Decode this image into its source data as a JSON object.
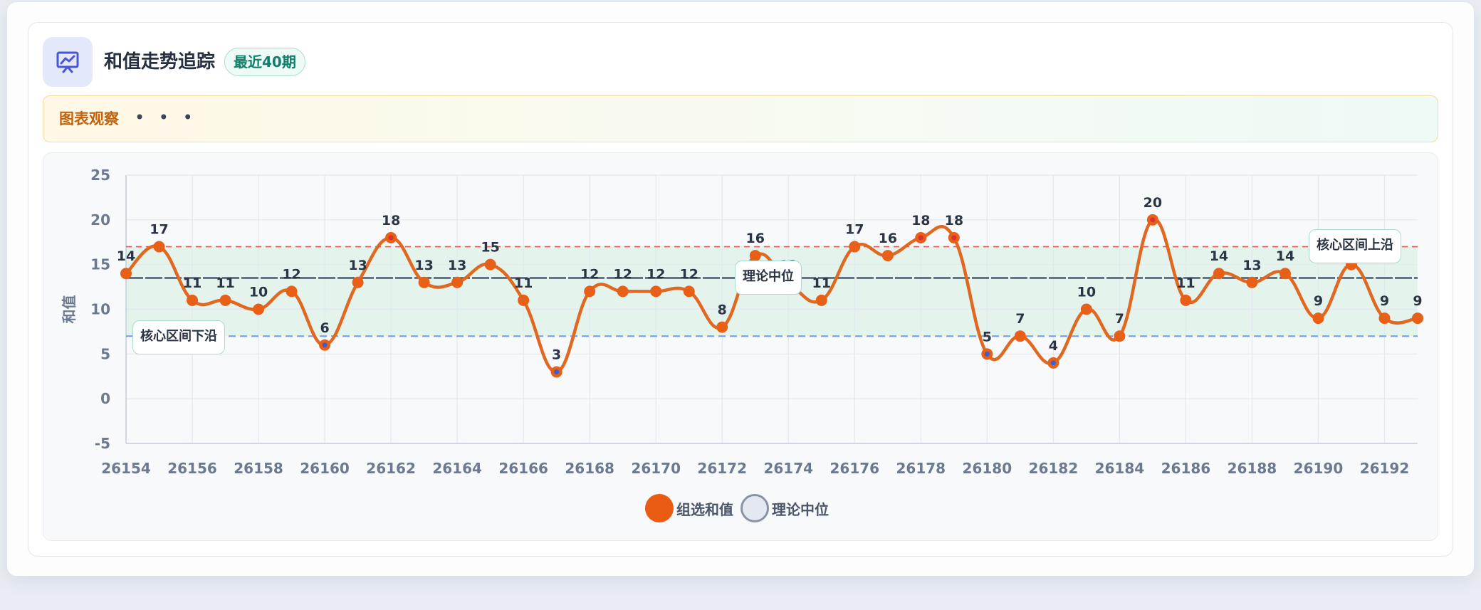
{
  "header": {
    "title": "和值走势追踪",
    "badge": "最近40期"
  },
  "observation": {
    "label": "图表观察",
    "ellipsis": "• • •"
  },
  "legend": {
    "series_label": "组选和值",
    "median_label": "理论中位"
  },
  "annotations": {
    "lower": "核心区间下沿",
    "median": "理论中位",
    "upper": "核心区间上沿"
  },
  "colors": {
    "line": "#e06820",
    "marker": "#e85f17",
    "median_line": "#4a5a75",
    "upper_line": "#e05a5a",
    "lower_line": "#6a9cf0",
    "band": "#dff2ea"
  },
  "chart_data": {
    "type": "line",
    "title": "",
    "xlabel": "",
    "ylabel": "和值",
    "x": [
      26154,
      26155,
      26156,
      26157,
      26158,
      26159,
      26160,
      26161,
      26162,
      26163,
      26164,
      26165,
      26166,
      26167,
      26168,
      26169,
      26170,
      26171,
      26172,
      26173,
      26174,
      26175,
      26176,
      26177,
      26178,
      26179,
      26180,
      26181,
      26182,
      26183,
      26184,
      26185,
      26186,
      26187,
      26188,
      26189,
      26190,
      26191,
      26192,
      26193
    ],
    "x_ticks": [
      26154,
      26156,
      26158,
      26160,
      26162,
      26164,
      26166,
      26168,
      26170,
      26172,
      26174,
      26176,
      26178,
      26180,
      26182,
      26184,
      26186,
      26188,
      26190,
      26192
    ],
    "y_ticks": [
      25,
      20,
      15,
      10,
      5,
      0,
      -5
    ],
    "ylim": [
      -5,
      25
    ],
    "series": [
      {
        "name": "组选和值",
        "values": [
          14,
          17,
          11,
          11,
          10,
          12,
          6,
          13,
          18,
          13,
          13,
          15,
          11,
          3,
          12,
          12,
          12,
          12,
          8,
          16,
          13,
          11,
          17,
          16,
          18,
          18,
          5,
          7,
          4,
          10,
          7,
          20,
          11,
          14,
          13,
          14,
          9,
          15,
          9,
          9
        ]
      }
    ],
    "reference_lines": {
      "median": 13.5,
      "upper": 17,
      "lower": 7
    },
    "band": [
      7,
      17
    ],
    "grid": true,
    "legend_position": "bottom-center"
  }
}
